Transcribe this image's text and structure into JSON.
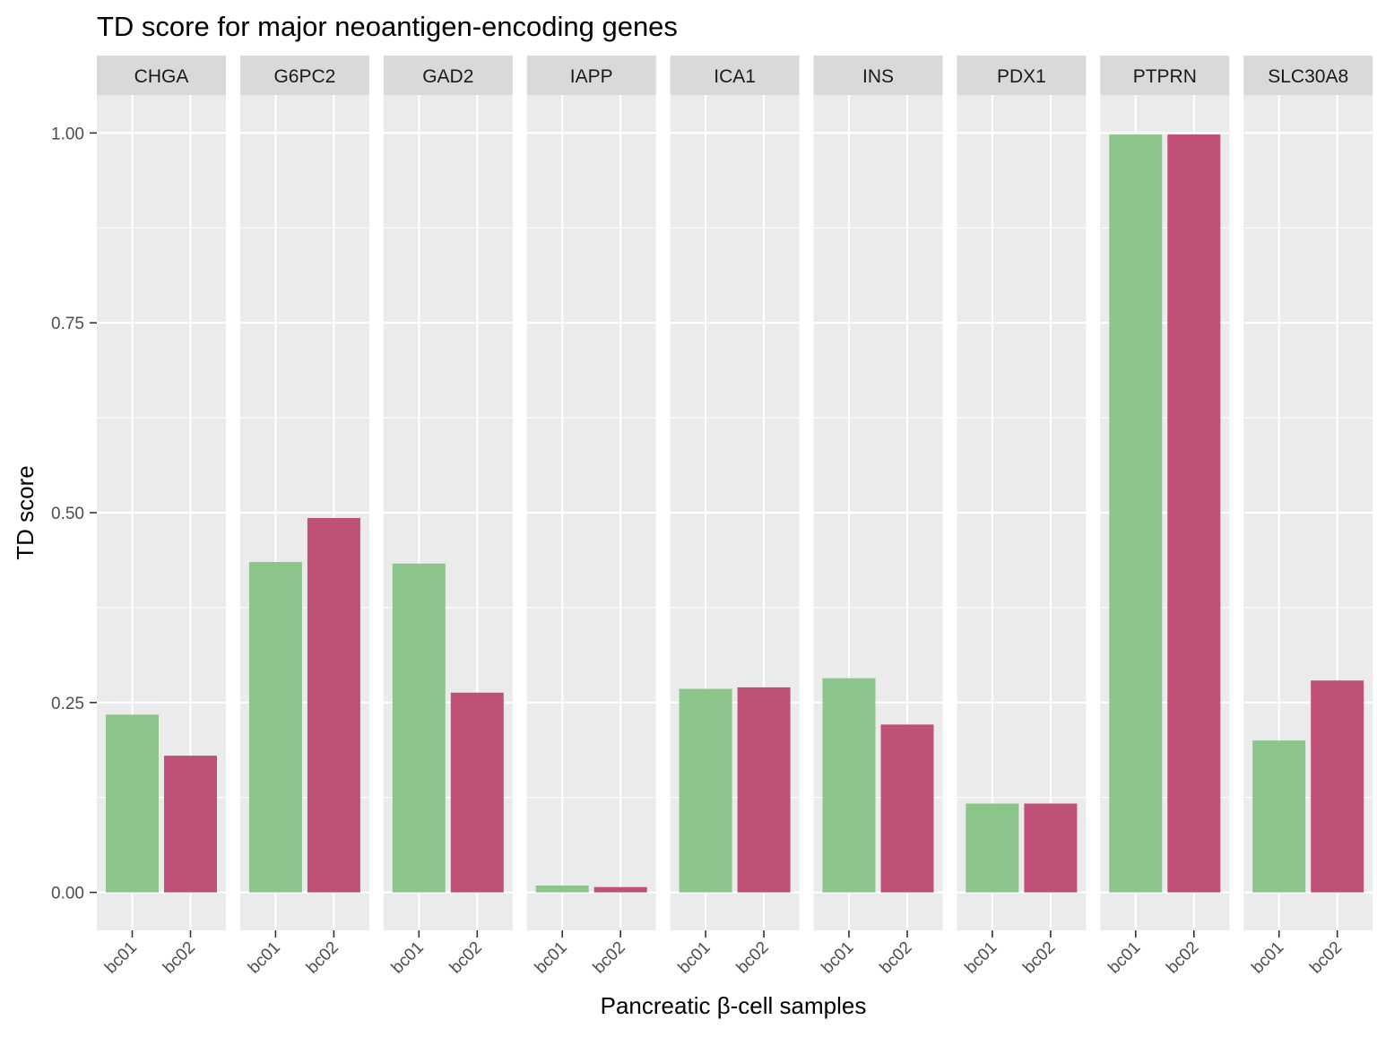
{
  "chart_data": {
    "type": "bar",
    "title": "TD score for major neoantigen-encoding genes",
    "xlabel": "Pancreatic β-cell samples",
    "ylabel": "TD score",
    "ylim": [
      -0.05,
      1.05
    ],
    "yticks": [
      0.0,
      0.25,
      0.5,
      0.75,
      1.0
    ],
    "ytick_labels": [
      "0.00",
      "0.25",
      "0.50",
      "0.75",
      "1.00"
    ],
    "categories": [
      "bc01",
      "bc02"
    ],
    "category_colors": {
      "bc01": "#8BC58A",
      "bc02": "#C05176"
    },
    "legend": "none",
    "grid": true,
    "facets": [
      {
        "gene": "CHGA",
        "values": [
          0.234,
          0.18
        ]
      },
      {
        "gene": "G6PC2",
        "values": [
          0.435,
          0.493
        ]
      },
      {
        "gene": "GAD2",
        "values": [
          0.433,
          0.263
        ]
      },
      {
        "gene": "IAPP",
        "values": [
          0.009,
          0.007
        ]
      },
      {
        "gene": "ICA1",
        "values": [
          0.268,
          0.27
        ]
      },
      {
        "gene": "INS",
        "values": [
          0.282,
          0.221
        ]
      },
      {
        "gene": "PDX1",
        "values": [
          0.117,
          0.117
        ]
      },
      {
        "gene": "PTPRN",
        "values": [
          0.998,
          0.998
        ]
      },
      {
        "gene": "SLC30A8",
        "values": [
          0.2,
          0.279
        ]
      }
    ]
  }
}
